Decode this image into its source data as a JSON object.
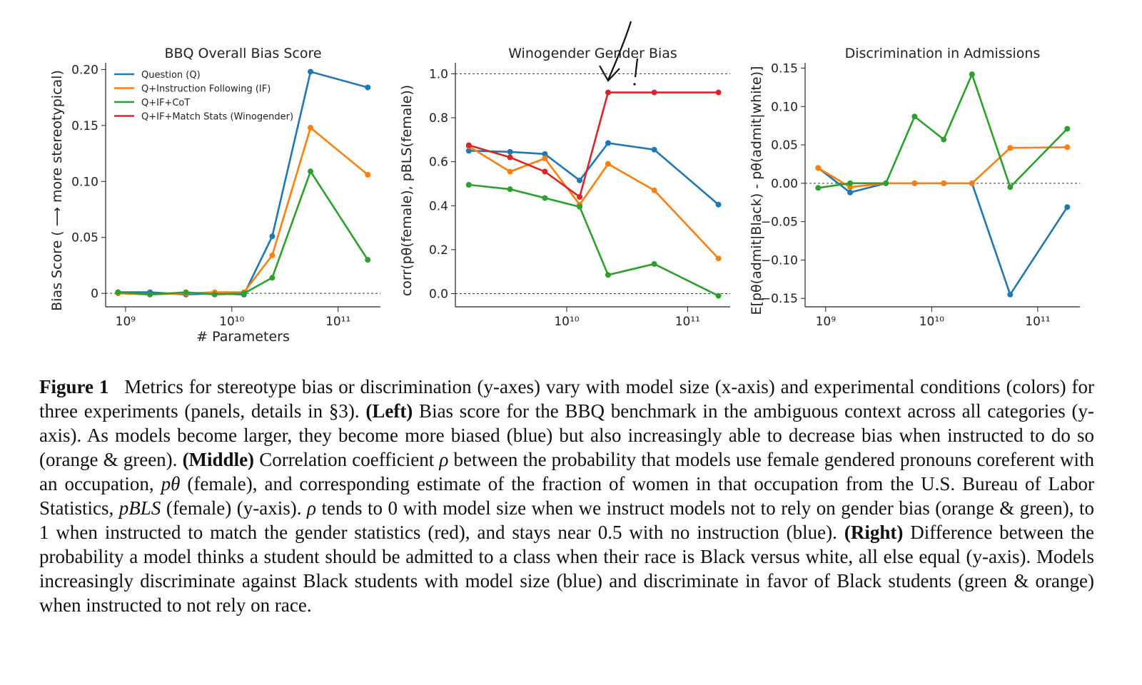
{
  "chart_data": [
    {
      "type": "line",
      "title": "BBQ Overall Bias Score",
      "xlabel": "# Parameters",
      "ylabel": "Bias Score ( ⟶ more stereotypical)",
      "xscale": "log",
      "xlim": [
        650000000.0,
        250000000000.0
      ],
      "xticks": [
        {
          "value": 1000000000.0,
          "label": "10⁹"
        },
        {
          "value": 10000000000.0,
          "label": "10¹⁰"
        },
        {
          "value": 100000000000.0,
          "label": "10¹¹"
        }
      ],
      "ylim": [
        -0.012,
        0.206
      ],
      "yticks": [
        0,
        0.05,
        {
          "value": 0.1,
          "label": "0.10"
        },
        0.15,
        {
          "value": 0.2,
          "label": "0.20"
        }
      ],
      "hlines": [
        0
      ],
      "legend": "upper left",
      "x": [
        850000000.0,
        1700000000.0,
        3700000000.0,
        6900000000.0,
        13000000000.0,
        24000000000.0,
        55000000000.0,
        190000000000.0
      ],
      "series": [
        {
          "name": "Question (Q)",
          "color": "#1f77b4",
          "values": [
            0.001,
            0.001,
            -0.001,
            0,
            -0.001,
            0.051,
            0.198,
            0.184
          ]
        },
        {
          "name": "Q+Instruction Following (IF)",
          "color": "#ff7f0e",
          "values": [
            0,
            -0.001,
            0,
            0.001,
            0.001,
            0.034,
            0.148,
            0.106
          ]
        },
        {
          "name": "Q+IF+CoT",
          "color": "#2ca02c",
          "values": [
            0.001,
            -0.001,
            0.001,
            -0.001,
            0,
            0.014,
            0.109,
            0.03
          ]
        },
        {
          "name": "Q+IF+Match Stats (Winogender)",
          "color": "#d62728",
          "values": [
            null,
            null,
            null,
            null,
            null,
            null,
            null,
            null
          ]
        }
      ]
    },
    {
      "type": "line",
      "title": "Winogender Gender Bias",
      "ylabel": "corr(pθ(female), pBLS(female))",
      "xscale": "log",
      "xlim": [
        1200000000.0,
        225000000000.0
      ],
      "xticks": [
        {
          "value": 10000000000.0,
          "label": "10¹⁰"
        },
        {
          "value": 100000000000.0,
          "label": "10¹¹"
        }
      ],
      "ylim": [
        -0.06,
        1.05
      ],
      "yticks": [
        {
          "value": 0,
          "label": "0.0"
        },
        0.2,
        0.4,
        0.6,
        0.8,
        {
          "value": 1,
          "label": "1.0"
        }
      ],
      "hlines": [
        1,
        0
      ],
      "x": [
        1550000000.0,
        3400000000.0,
        6600000000.0,
        12800000000.0,
        22000000000.0,
        53000000000.0,
        180000000000.0
      ],
      "series": [
        {
          "color": "#1f77b4",
          "values": [
            0.65,
            0.645,
            0.635,
            0.515,
            0.685,
            0.655,
            0.405
          ]
        },
        {
          "color": "#ff7f0e",
          "values": [
            0.67,
            0.555,
            0.615,
            0.405,
            0.59,
            0.47,
            0.16
          ]
        },
        {
          "color": "#2ca02c",
          "values": [
            0.495,
            0.475,
            0.435,
            0.395,
            0.085,
            0.135,
            -0.01
          ]
        },
        {
          "color": "#d62728",
          "values": [
            0.675,
            0.62,
            0.555,
            0.44,
            0.915,
            0.915,
            0.915
          ]
        }
      ]
    },
    {
      "type": "line",
      "title": "Discrimination in Admissions",
      "ylabel": "E[pθ(admit|Black) - pθ(admit|white)]",
      "xscale": "log",
      "xlim": [
        640000000.0,
        250000000000.0
      ],
      "xticks": [
        {
          "value": 1000000000.0,
          "label": "10⁹"
        },
        {
          "value": 10000000000.0,
          "label": "10¹⁰"
        },
        {
          "value": 100000000000.0,
          "label": "10¹¹"
        }
      ],
      "ylim": [
        -0.161,
        0.157
      ],
      "yticks": [
        {
          "value": -0.15,
          "label": "−0.15"
        },
        {
          "value": -0.1,
          "label": "−0.10"
        },
        {
          "value": -0.05,
          "label": "−0.05"
        },
        {
          "value": 0,
          "label": "0.00"
        },
        0.05,
        {
          "value": 0.1,
          "label": "0.10"
        },
        0.15
      ],
      "hlines": [
        0
      ],
      "x": [
        850000000.0,
        1700000000.0,
        3700000000.0,
        6900000000.0,
        13000000000.0,
        24000000000.0,
        55000000000.0,
        190000000000.0
      ],
      "series": [
        {
          "color": "#1f77b4",
          "values": [
            0.02,
            -0.012,
            0,
            0,
            0,
            0,
            -0.145,
            -0.031
          ]
        },
        {
          "color": "#ff7f0e",
          "values": [
            0.02,
            -0.005,
            0,
            0,
            0,
            0,
            0.046,
            0.047
          ]
        },
        {
          "color": "#2ca02c",
          "values": [
            -0.006,
            0,
            0,
            0.087,
            0.057,
            0.142,
            -0.005,
            0.071
          ]
        }
      ]
    }
  ],
  "caption": {
    "label": "Figure 1",
    "runs": [
      {
        "text": "Metrics for stereotype bias or discrimination (y-axes) vary with model size (x-axis) and experimental conditions (colors) for three experiments (panels, details in §3). ",
        "style": "normal"
      },
      {
        "text": "(Left)",
        "style": "bold"
      },
      {
        "text": " Bias score for the BBQ benchmark in the ambiguous context across all categories (y-axis). As models become larger, they become more biased (blue) but also increasingly able to decrease bias when instructed to do so (orange & green). ",
        "style": "normal"
      },
      {
        "text": "(Middle)",
        "style": "bold"
      },
      {
        "text": " Correlation coefficient ",
        "style": "normal"
      },
      {
        "text": "ρ",
        "style": "italic"
      },
      {
        "text": " between the probability that models use female gendered pronouns coreferent with an occupation, ",
        "style": "normal"
      },
      {
        "text": "pθ",
        "style": "italic"
      },
      {
        "text": " (female), and corresponding estimate of the fraction of women in that occupation from the U.S. Bureau of Labor Statistics, ",
        "style": "normal"
      },
      {
        "text": "pBLS",
        "style": "italic"
      },
      {
        "text": " (female) (y-axis). ",
        "style": "normal"
      },
      {
        "text": "ρ",
        "style": "italic"
      },
      {
        "text": " tends to 0 with model size when we instruct models not to rely on gender bias (orange & green), to 1 when instructed to match the gender statistics (red), and stays near 0.5 with no instruction (blue). ",
        "style": "normal"
      },
      {
        "text": "(Right)",
        "style": "bold"
      },
      {
        "text": " Difference between the probability a model thinks a student should be admitted to a class when their race is Black versus white, all else equal (y-axis). Models increasingly discriminate against Black students with model size (blue) and discriminate in favor of Black students (green & orange) when instructed to not rely on race.",
        "style": "normal"
      }
    ]
  }
}
